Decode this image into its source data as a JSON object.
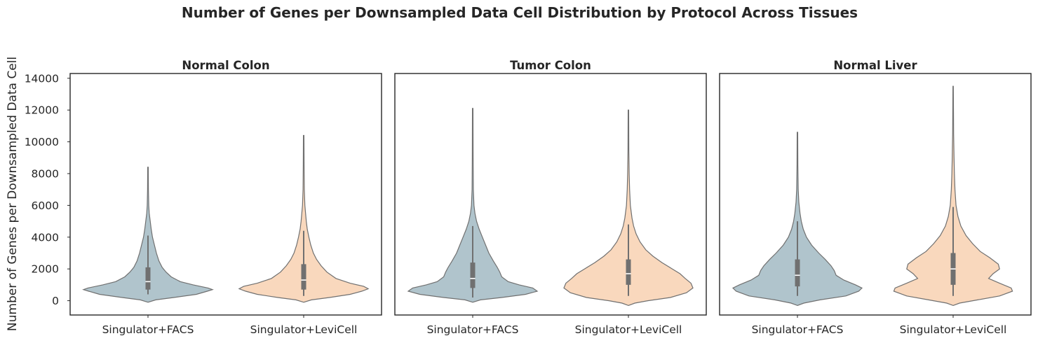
{
  "chart_data": {
    "type": "violin",
    "title": "Number of Genes per Downsampled Data Cell Distribution by Protocol Across Tissues",
    "ylabel": "Number of Genes per Downsampled Data Cell",
    "xlabel": "",
    "ylim": [
      -900,
      14300
    ],
    "yticks": [
      0,
      2000,
      4000,
      6000,
      8000,
      10000,
      12000,
      14000
    ],
    "grid": false,
    "shared_y": true,
    "categories": [
      "Singulator+FACS",
      "Singulator+LeviCell"
    ],
    "colors": {
      "Singulator+FACS": "#b0c4cc",
      "Singulator+LeviCell": "#f9d8bd",
      "outline": "#707070",
      "box": "#707070",
      "median": "#ffffff"
    },
    "panels": [
      {
        "title": "Normal Colon",
        "violins": [
          {
            "category": "Singulator+FACS",
            "min": 200,
            "max": 8400,
            "whisker_low": 400,
            "whisker_high": 4100,
            "q1": 700,
            "median": 1200,
            "q3": 2100,
            "profile": [
              [
                -100,
                0
              ],
              [
                50,
                0.12
              ],
              [
                200,
                0.4
              ],
              [
                400,
                0.75
              ],
              [
                600,
                0.92
              ],
              [
                700,
                1.0
              ],
              [
                800,
                0.93
              ],
              [
                1000,
                0.7
              ],
              [
                1200,
                0.5
              ],
              [
                1500,
                0.36
              ],
              [
                1800,
                0.28
              ],
              [
                2100,
                0.22
              ],
              [
                2500,
                0.17
              ],
              [
                3000,
                0.13
              ],
              [
                3500,
                0.1
              ],
              [
                4000,
                0.07
              ],
              [
                4500,
                0.05
              ],
              [
                5000,
                0.035
              ],
              [
                5500,
                0.02
              ],
              [
                6000,
                0.012
              ],
              [
                7000,
                0.007
              ],
              [
                8400,
                0.004
              ]
            ]
          },
          {
            "category": "Singulator+LeviCell",
            "min": 200,
            "max": 10400,
            "whisker_low": 300,
            "whisker_high": 4400,
            "q1": 700,
            "median": 1300,
            "q3": 2300,
            "profile": [
              [
                -100,
                0
              ],
              [
                50,
                0.12
              ],
              [
                200,
                0.4
              ],
              [
                400,
                0.72
              ],
              [
                600,
                0.9
              ],
              [
                750,
                1.0
              ],
              [
                900,
                0.93
              ],
              [
                1100,
                0.72
              ],
              [
                1400,
                0.5
              ],
              [
                1800,
                0.36
              ],
              [
                2200,
                0.27
              ],
              [
                2600,
                0.2
              ],
              [
                3000,
                0.15
              ],
              [
                3500,
                0.11
              ],
              [
                4000,
                0.08
              ],
              [
                4500,
                0.055
              ],
              [
                5000,
                0.04
              ],
              [
                6000,
                0.018
              ],
              [
                7000,
                0.01
              ],
              [
                8500,
                0.006
              ],
              [
                10400,
                0.004
              ]
            ]
          }
        ]
      },
      {
        "title": "Tumor Colon",
        "violins": [
          {
            "category": "Singulator+FACS",
            "min": 200,
            "max": 12100,
            "whisker_low": 200,
            "whisker_high": 4700,
            "q1": 800,
            "median": 1400,
            "q3": 2400,
            "profile": [
              [
                -100,
                0
              ],
              [
                50,
                0.12
              ],
              [
                200,
                0.45
              ],
              [
                400,
                0.82
              ],
              [
                600,
                1.0
              ],
              [
                800,
                0.93
              ],
              [
                1000,
                0.72
              ],
              [
                1200,
                0.55
              ],
              [
                1500,
                0.45
              ],
              [
                1800,
                0.42
              ],
              [
                2100,
                0.38
              ],
              [
                2500,
                0.32
              ],
              [
                3000,
                0.25
              ],
              [
                3500,
                0.2
              ],
              [
                4000,
                0.15
              ],
              [
                4500,
                0.1
              ],
              [
                5000,
                0.06
              ],
              [
                5500,
                0.035
              ],
              [
                6000,
                0.02
              ],
              [
                7000,
                0.01
              ],
              [
                9000,
                0.006
              ],
              [
                12100,
                0.004
              ]
            ]
          },
          {
            "category": "Singulator+LeviCell",
            "min": 200,
            "max": 12000,
            "whisker_low": 300,
            "whisker_high": 4800,
            "q1": 1000,
            "median": 1700,
            "q3": 2600,
            "profile": [
              [
                -300,
                0
              ],
              [
                -150,
                0.1
              ],
              [
                0,
                0.3
              ],
              [
                200,
                0.65
              ],
              [
                500,
                0.9
              ],
              [
                800,
                1.0
              ],
              [
                1100,
                0.97
              ],
              [
                1400,
                0.88
              ],
              [
                1700,
                0.8
              ],
              [
                2000,
                0.68
              ],
              [
                2400,
                0.52
              ],
              [
                2800,
                0.38
              ],
              [
                3200,
                0.27
              ],
              [
                3700,
                0.18
              ],
              [
                4200,
                0.12
              ],
              [
                4700,
                0.08
              ],
              [
                5200,
                0.055
              ],
              [
                6000,
                0.03
              ],
              [
                7000,
                0.018
              ],
              [
                8000,
                0.012
              ],
              [
                9500,
                0.006
              ],
              [
                12000,
                0.004
              ]
            ]
          }
        ]
      },
      {
        "title": "Normal Liver",
        "violins": [
          {
            "category": "Singulator+FACS",
            "min": 200,
            "max": 10600,
            "whisker_low": 300,
            "whisker_high": 5000,
            "q1": 900,
            "median": 1600,
            "q3": 2600,
            "profile": [
              [
                -300,
                0
              ],
              [
                -150,
                0.1
              ],
              [
                50,
                0.35
              ],
              [
                300,
                0.75
              ],
              [
                600,
                0.95
              ],
              [
                800,
                1.0
              ],
              [
                1000,
                0.9
              ],
              [
                1300,
                0.72
              ],
              [
                1600,
                0.6
              ],
              [
                1900,
                0.57
              ],
              [
                2200,
                0.52
              ],
              [
                2600,
                0.43
              ],
              [
                3000,
                0.33
              ],
              [
                3500,
                0.22
              ],
              [
                4000,
                0.14
              ],
              [
                4500,
                0.09
              ],
              [
                5000,
                0.06
              ],
              [
                5500,
                0.04
              ],
              [
                6200,
                0.022
              ],
              [
                7000,
                0.012
              ],
              [
                8500,
                0.006
              ],
              [
                10600,
                0.004
              ]
            ]
          },
          {
            "category": "Singulator+LeviCell",
            "min": 200,
            "max": 13500,
            "whisker_low": 300,
            "whisker_high": 5900,
            "q1": 1000,
            "median": 2000,
            "q3": 3000,
            "profile": [
              [
                -300,
                0
              ],
              [
                -150,
                0.1
              ],
              [
                50,
                0.38
              ],
              [
                300,
                0.72
              ],
              [
                600,
                0.92
              ],
              [
                800,
                0.9
              ],
              [
                1100,
                0.72
              ],
              [
                1400,
                0.55
              ],
              [
                1700,
                0.62
              ],
              [
                2000,
                0.72
              ],
              [
                2300,
                0.7
              ],
              [
                2700,
                0.57
              ],
              [
                3100,
                0.42
              ],
              [
                3600,
                0.3
              ],
              [
                4100,
                0.2
              ],
              [
                4700,
                0.12
              ],
              [
                5300,
                0.075
              ],
              [
                6000,
                0.045
              ],
              [
                7000,
                0.028
              ],
              [
                8000,
                0.02
              ],
              [
                9000,
                0.014
              ],
              [
                10500,
                0.008
              ],
              [
                12000,
                0.005
              ],
              [
                13500,
                0.003
              ]
            ]
          }
        ]
      }
    ]
  }
}
